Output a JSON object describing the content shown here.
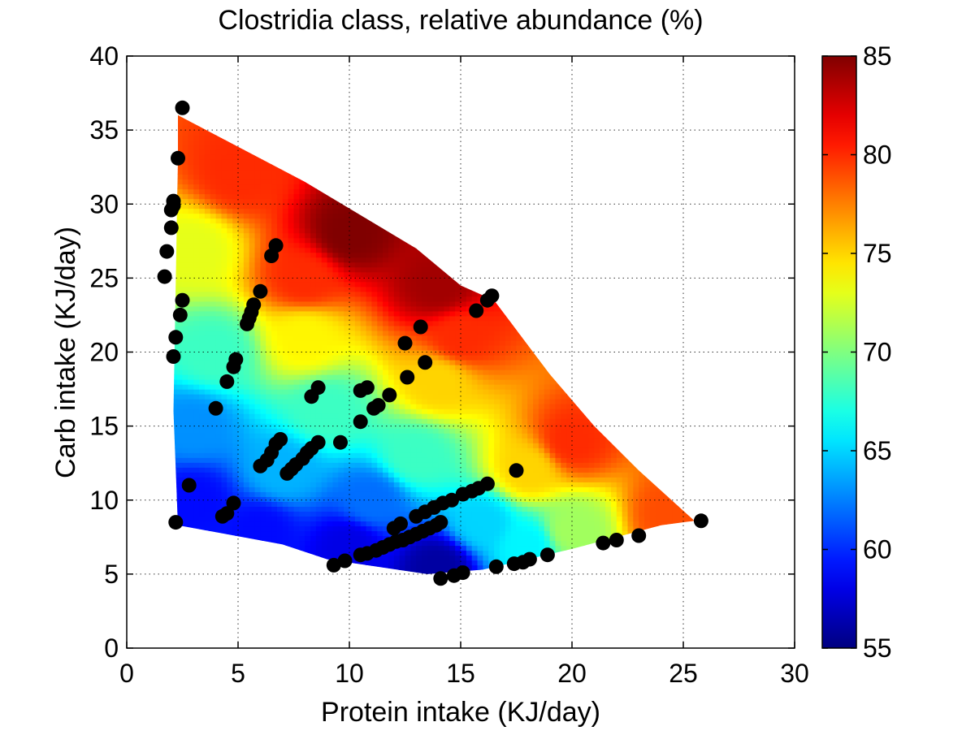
{
  "chart_data": {
    "type": "heatmap",
    "title": "Clostridia class, relative abundance (%)",
    "xlabel": "Protein intake (KJ/day)",
    "ylabel": "Carb intake (KJ/day)",
    "xlim": [
      0,
      30
    ],
    "ylim": [
      0,
      40
    ],
    "xticks": [
      0,
      5,
      10,
      15,
      20,
      25,
      30
    ],
    "yticks": [
      0,
      5,
      10,
      15,
      20,
      25,
      30,
      35,
      40
    ],
    "grid": true,
    "colormap": "jet",
    "colorbar": {
      "range": [
        55,
        85
      ],
      "ticks": [
        55,
        60,
        65,
        70,
        75,
        80,
        85
      ],
      "placement": "right"
    },
    "surface_region": [
      [
        2.3,
        36
      ],
      [
        8,
        31.5
      ],
      [
        13,
        27
      ],
      [
        15,
        24.5
      ],
      [
        16.5,
        23.5
      ],
      [
        19,
        18.5
      ],
      [
        21,
        15
      ],
      [
        23,
        12
      ],
      [
        25.5,
        8.6
      ],
      [
        24,
        8.3
      ],
      [
        20,
        6.7
      ],
      [
        16,
        5.3
      ],
      [
        13.5,
        5
      ],
      [
        9,
        6
      ],
      [
        7,
        7
      ],
      [
        2.3,
        8.3
      ],
      [
        2.1,
        16
      ],
      [
        2.3,
        33
      ]
    ],
    "value_anchors": [
      {
        "x": 10,
        "y": 28,
        "v": 85
      },
      {
        "x": 14,
        "y": 24.5,
        "v": 84
      },
      {
        "x": 5,
        "y": 32,
        "v": 80
      },
      {
        "x": 8,
        "y": 25,
        "v": 80
      },
      {
        "x": 15,
        "y": 21,
        "v": 80
      },
      {
        "x": 20,
        "y": 14,
        "v": 80
      },
      {
        "x": 24.5,
        "y": 9,
        "v": 79
      },
      {
        "x": 3,
        "y": 27,
        "v": 73
      },
      {
        "x": 8,
        "y": 21,
        "v": 74
      },
      {
        "x": 14,
        "y": 18,
        "v": 75
      },
      {
        "x": 18,
        "y": 12,
        "v": 75
      },
      {
        "x": 20,
        "y": 8,
        "v": 71
      },
      {
        "x": 4,
        "y": 20,
        "v": 68
      },
      {
        "x": 9,
        "y": 16,
        "v": 68
      },
      {
        "x": 13,
        "y": 13,
        "v": 68
      },
      {
        "x": 16,
        "y": 8.5,
        "v": 65
      },
      {
        "x": 18,
        "y": 7,
        "v": 66
      },
      {
        "x": 3,
        "y": 15,
        "v": 63
      },
      {
        "x": 7,
        "y": 12,
        "v": 64
      },
      {
        "x": 11,
        "y": 10,
        "v": 62
      },
      {
        "x": 3,
        "y": 10,
        "v": 59
      },
      {
        "x": 6,
        "y": 8,
        "v": 59
      },
      {
        "x": 10,
        "y": 7,
        "v": 58
      },
      {
        "x": 14,
        "y": 5.5,
        "v": 56
      }
    ],
    "points": [
      [
        2.5,
        36.5
      ],
      [
        2.3,
        33.1
      ],
      [
        2.1,
        30.2
      ],
      [
        2.1,
        29.9
      ],
      [
        2.0,
        29.6
      ],
      [
        2.0,
        28.4
      ],
      [
        1.8,
        26.8
      ],
      [
        1.7,
        25.1
      ],
      [
        2.5,
        23.5
      ],
      [
        2.4,
        22.5
      ],
      [
        2.2,
        21.0
      ],
      [
        2.1,
        19.7
      ],
      [
        2.2,
        8.5
      ],
      [
        2.8,
        11.0
      ],
      [
        4.0,
        16.2
      ],
      [
        4.5,
        18.0
      ],
      [
        4.8,
        19.0
      ],
      [
        4.9,
        19.5
      ],
      [
        5.4,
        21.9
      ],
      [
        5.5,
        22.3
      ],
      [
        5.6,
        22.7
      ],
      [
        5.7,
        23.2
      ],
      [
        6.0,
        24.1
      ],
      [
        6.5,
        26.5
      ],
      [
        6.7,
        27.2
      ],
      [
        4.3,
        8.9
      ],
      [
        4.5,
        9.1
      ],
      [
        4.8,
        9.8
      ],
      [
        6.0,
        12.3
      ],
      [
        6.3,
        12.7
      ],
      [
        6.5,
        13.2
      ],
      [
        6.7,
        13.8
      ],
      [
        6.9,
        14.1
      ],
      [
        7.2,
        11.8
      ],
      [
        7.4,
        12.1
      ],
      [
        7.6,
        12.4
      ],
      [
        7.9,
        12.8
      ],
      [
        8.1,
        13.2
      ],
      [
        8.3,
        13.5
      ],
      [
        8.6,
        13.9
      ],
      [
        8.3,
        17.0
      ],
      [
        8.6,
        17.6
      ],
      [
        9.6,
        13.9
      ],
      [
        9.3,
        5.6
      ],
      [
        9.8,
        5.9
      ],
      [
        10.5,
        6.3
      ],
      [
        10.8,
        6.4
      ],
      [
        11.2,
        6.6
      ],
      [
        11.5,
        6.8
      ],
      [
        11.8,
        7.0
      ],
      [
        12.1,
        7.2
      ],
      [
        12.4,
        7.3
      ],
      [
        12.7,
        7.5
      ],
      [
        13.0,
        7.7
      ],
      [
        13.3,
        7.9
      ],
      [
        13.6,
        8.1
      ],
      [
        13.9,
        8.3
      ],
      [
        14.1,
        8.5
      ],
      [
        12.0,
        8.1
      ],
      [
        12.3,
        8.4
      ],
      [
        13.0,
        8.9
      ],
      [
        13.4,
        9.2
      ],
      [
        13.8,
        9.5
      ],
      [
        14.2,
        9.8
      ],
      [
        14.6,
        10.0
      ],
      [
        15.1,
        10.4
      ],
      [
        15.5,
        10.6
      ],
      [
        15.8,
        10.8
      ],
      [
        16.2,
        11.1
      ],
      [
        10.5,
        15.3
      ],
      [
        10.5,
        17.4
      ],
      [
        10.8,
        17.6
      ],
      [
        11.1,
        16.2
      ],
      [
        11.3,
        16.4
      ],
      [
        11.8,
        17.1
      ],
      [
        12.5,
        20.6
      ],
      [
        12.6,
        18.3
      ],
      [
        13.2,
        21.7
      ],
      [
        13.4,
        19.3
      ],
      [
        14.1,
        4.7
      ],
      [
        14.7,
        4.9
      ],
      [
        15.1,
        5.1
      ],
      [
        15.7,
        22.8
      ],
      [
        16.2,
        23.5
      ],
      [
        16.4,
        23.8
      ],
      [
        16.6,
        5.5
      ],
      [
        17.4,
        5.7
      ],
      [
        17.8,
        5.8
      ],
      [
        18.1,
        6.0
      ],
      [
        17.5,
        12.0
      ],
      [
        18.9,
        6.3
      ],
      [
        21.4,
        7.1
      ],
      [
        22.0,
        7.3
      ],
      [
        23.0,
        7.6
      ],
      [
        25.8,
        8.6
      ]
    ]
  }
}
